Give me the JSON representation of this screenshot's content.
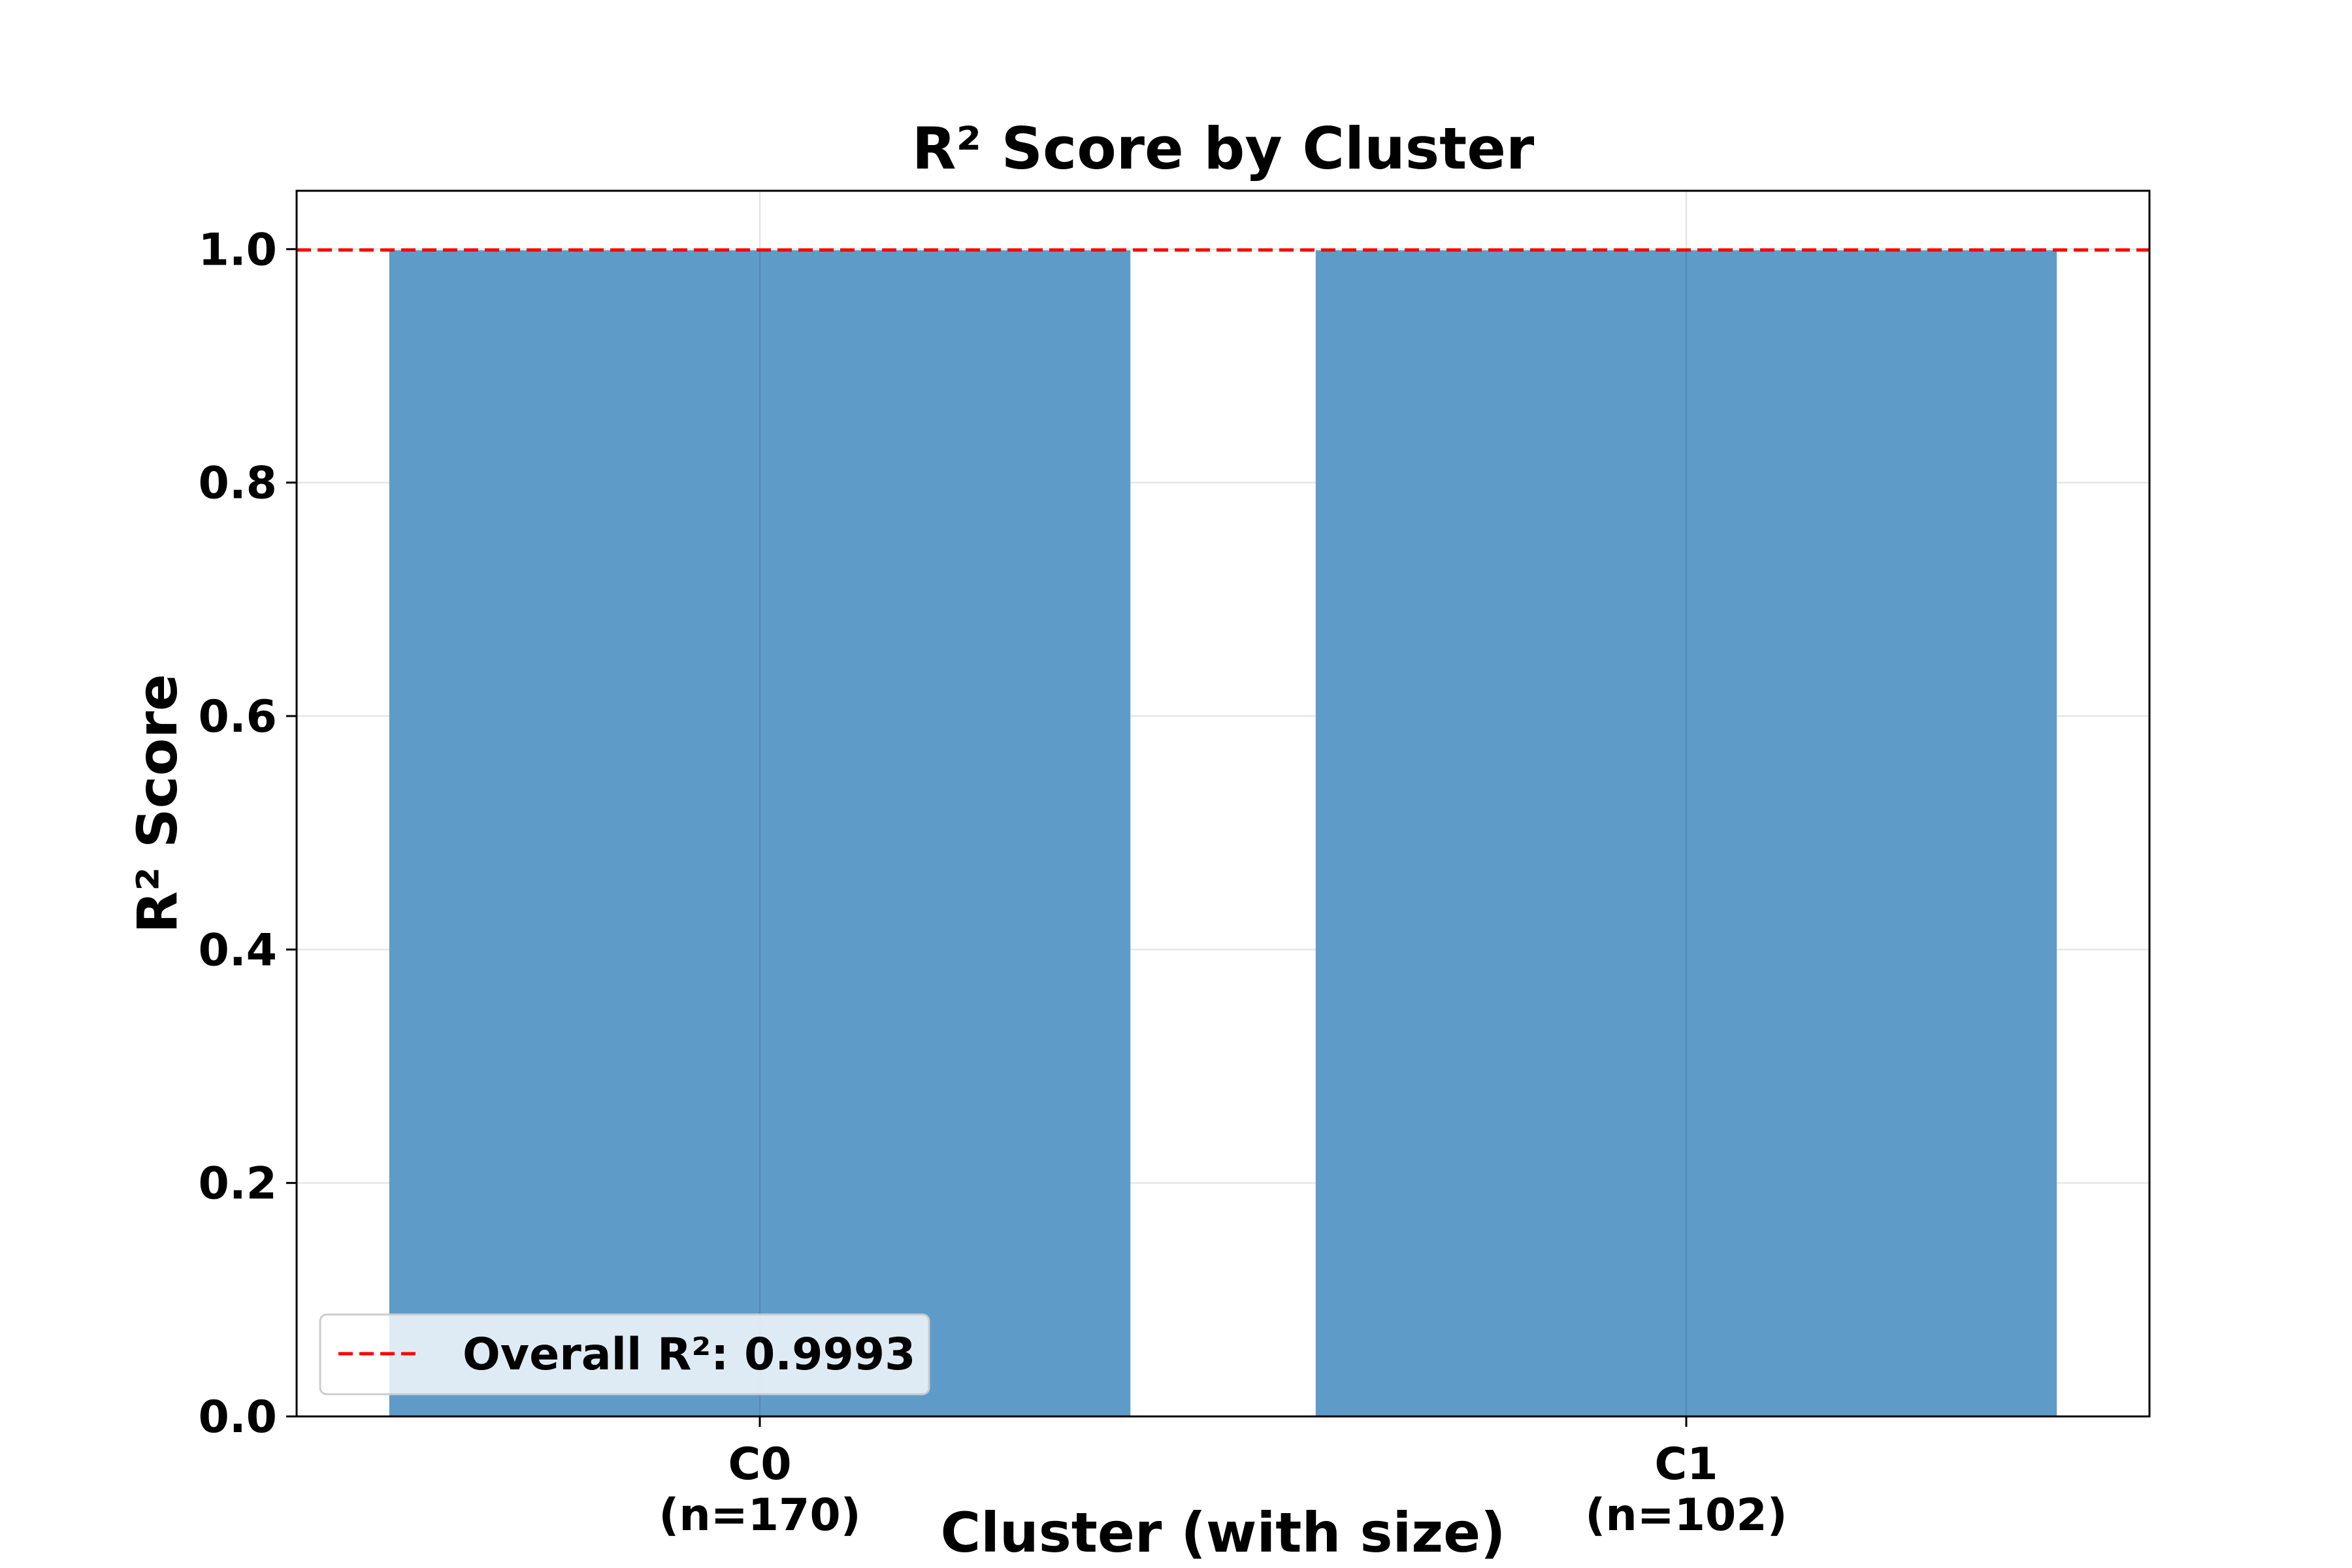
{
  "chart_data": {
    "type": "bar",
    "title": "R² Score by Cluster",
    "xlabel": "Cluster (with size)",
    "ylabel": "R² Score",
    "categories": [
      "C0",
      "C1"
    ],
    "category_sizes": [
      "(n=170)",
      "(n=102)"
    ],
    "values": [
      0.999,
      0.999
    ],
    "ylim": [
      0,
      1.05
    ],
    "yticks": [
      0.0,
      0.2,
      0.4,
      0.6,
      0.8,
      1.0
    ],
    "ytick_labels": [
      "0.0",
      "0.2",
      "0.4",
      "0.6",
      "0.8",
      "1.0"
    ],
    "reference_line": {
      "value": 0.9993,
      "label": "Overall R²: 0.9993",
      "color": "#ff0000",
      "style": "dashed"
    },
    "bar_color": "#5f9bc9",
    "grid": true,
    "legend_placement": "lower-left"
  }
}
